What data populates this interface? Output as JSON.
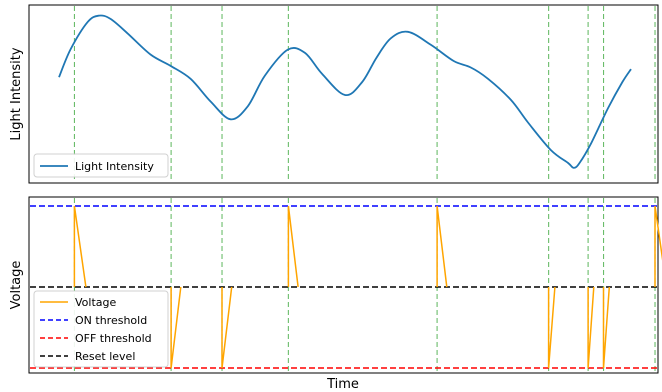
{
  "chart_data": [
    {
      "type": "line",
      "title": "",
      "xlabel": "",
      "ylabel": "Light Intensity",
      "xlim": [
        0,
        1
      ],
      "grid": false,
      "legend": {
        "placement": "lower-left",
        "entries": [
          "Light Intensity"
        ]
      },
      "series": [
        {
          "name": "Light Intensity",
          "color": "#1f77b4",
          "x": [
            0.0,
            0.02,
            0.05,
            0.07,
            0.09,
            0.12,
            0.16,
            0.195,
            0.23,
            0.265,
            0.3,
            0.33,
            0.36,
            0.4,
            0.43,
            0.46,
            0.5,
            0.53,
            0.555,
            0.58,
            0.61,
            0.65,
            0.69,
            0.72,
            0.75,
            0.79,
            0.82,
            0.86,
            0.89,
            0.9,
            0.91,
            0.93,
            0.96,
            0.985,
            1.0
          ],
          "y": [
            0.61,
            0.78,
            0.95,
            0.99,
            0.97,
            0.88,
            0.75,
            0.68,
            0.6,
            0.46,
            0.35,
            0.43,
            0.62,
            0.78,
            0.76,
            0.63,
            0.5,
            0.58,
            0.73,
            0.85,
            0.89,
            0.81,
            0.71,
            0.67,
            0.6,
            0.47,
            0.33,
            0.16,
            0.08,
            0.05,
            0.08,
            0.2,
            0.42,
            0.58,
            0.66
          ]
        }
      ],
      "vlines": {
        "color": "#2ca02c",
        "style": "dashed",
        "x": [
          0.027,
          0.196,
          0.285,
          0.401,
          0.661,
          0.856,
          0.925,
          0.952,
          1.042
        ]
      }
    },
    {
      "type": "line",
      "title": "",
      "xlabel": "Time",
      "ylabel": "Voltage",
      "xlim": [
        0,
        1
      ],
      "ylim": [
        -1.0,
        1.0
      ],
      "grid": false,
      "legend": {
        "placement": "lower-left",
        "entries": [
          "Voltage",
          "ON threshold",
          "OFF threshold",
          "Reset level"
        ]
      },
      "hlines": [
        {
          "name": "ON threshold",
          "y": 1.0,
          "color": "#0000ff",
          "style": "dashed"
        },
        {
          "name": "OFF threshold",
          "y": -1.0,
          "color": "#ff0000",
          "style": "dashed"
        },
        {
          "name": "Reset level",
          "y": 0.0,
          "color": "#000000",
          "style": "dashed"
        }
      ],
      "series": [
        {
          "name": "Voltage",
          "color": "#ffa500",
          "segments": [
            {
              "x": [
                0.027,
                0.027,
                0.047,
                0.047
              ],
              "y": [
                0.0,
                1.0,
                0.0,
                0.0
              ]
            },
            {
              "x": [
                0.196,
                0.196,
                0.213,
                0.213
              ],
              "y": [
                0.0,
                -1.0,
                0.0,
                0.0
              ]
            },
            {
              "x": [
                0.285,
                0.285,
                0.302,
                0.302
              ],
              "y": [
                0.0,
                -1.0,
                0.0,
                0.0
              ]
            },
            {
              "x": [
                0.401,
                0.401,
                0.418,
                0.418
              ],
              "y": [
                0.0,
                1.0,
                0.0,
                0.0
              ]
            },
            {
              "x": [
                0.661,
                0.661,
                0.678,
                0.678
              ],
              "y": [
                0.0,
                1.0,
                0.0,
                0.0
              ]
            },
            {
              "x": [
                0.856,
                0.856,
                0.867,
                0.867
              ],
              "y": [
                0.0,
                -1.0,
                0.0,
                0.0
              ]
            },
            {
              "x": [
                0.925,
                0.925,
                0.935,
                0.935
              ],
              "y": [
                0.0,
                -1.0,
                0.0,
                0.0
              ]
            },
            {
              "x": [
                0.952,
                0.952,
                0.962,
                0.962
              ],
              "y": [
                0.0,
                -1.0,
                0.0,
                0.0
              ]
            },
            {
              "x": [
                1.042,
                1.042,
                1.062,
                1.062
              ],
              "y": [
                0.0,
                1.0,
                0.0,
                0.0
              ]
            }
          ]
        }
      ],
      "vlines": {
        "color": "#2ca02c",
        "style": "dashed",
        "x": [
          0.027,
          0.196,
          0.285,
          0.401,
          0.661,
          0.856,
          0.925,
          0.952,
          1.042
        ]
      }
    }
  ]
}
